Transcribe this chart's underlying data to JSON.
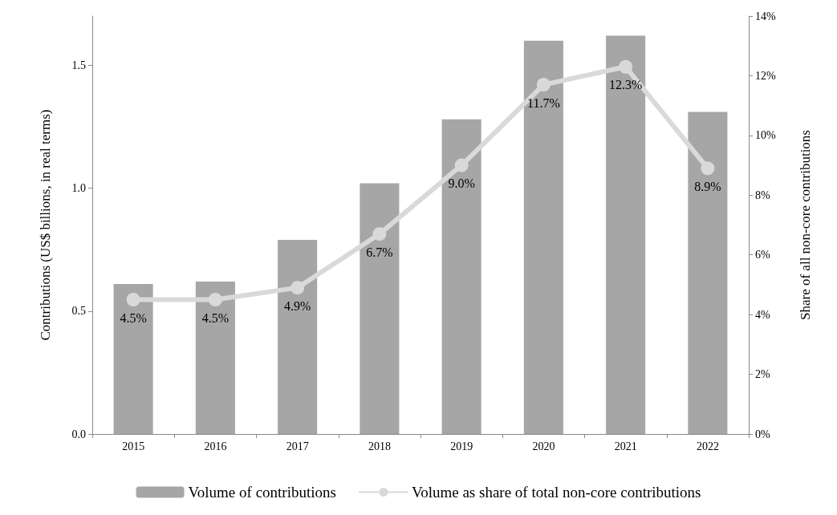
{
  "chart_data": {
    "type": "bar",
    "categories": [
      "2015",
      "2016",
      "2017",
      "2018",
      "2019",
      "2020",
      "2021",
      "2022"
    ],
    "series": [
      {
        "name": "Volume of contributions",
        "color": "#a6a6a6",
        "values": [
          0.61,
          0.62,
          0.79,
          1.02,
          1.28,
          1.6,
          1.62,
          1.31
        ]
      },
      {
        "name": "Volume as share of total non-core contributions",
        "type": "line",
        "axis": "y2",
        "color": "#d9d9d9",
        "values": [
          4.5,
          4.5,
          4.9,
          6.7,
          9.0,
          11.7,
          12.3,
          8.9
        ],
        "value_labels": [
          "4.5%",
          "4.5%",
          "4.9%",
          "6.7%",
          "9.0%",
          "11.7%",
          "12.3%",
          "8.9%"
        ]
      }
    ],
    "ylabel": "Contributions (US$ billions, in real terms)",
    "y2label": "Share of all non-core contributions",
    "ylim": [
      0,
      1.7
    ],
    "yticks": [
      {
        "value": 0,
        "label": "0.0"
      },
      {
        "value": 0.5,
        "label": "0.5"
      },
      {
        "value": 1,
        "label": "1.0"
      },
      {
        "value": 1.5,
        "label": "1.5"
      }
    ],
    "y2lim": [
      0,
      14
    ],
    "y2ticks": [
      {
        "value": 0,
        "label": "0%"
      },
      {
        "value": 2,
        "label": "2%"
      },
      {
        "value": 4,
        "label": "4%"
      },
      {
        "value": 6,
        "label": "6%"
      },
      {
        "value": 8,
        "label": "8%"
      },
      {
        "value": 10,
        "label": "10%"
      },
      {
        "value": 12,
        "label": "12%"
      },
      {
        "value": 14,
        "label": "14%"
      }
    ],
    "grid": false,
    "legend": "bottom",
    "marker": "circle"
  }
}
